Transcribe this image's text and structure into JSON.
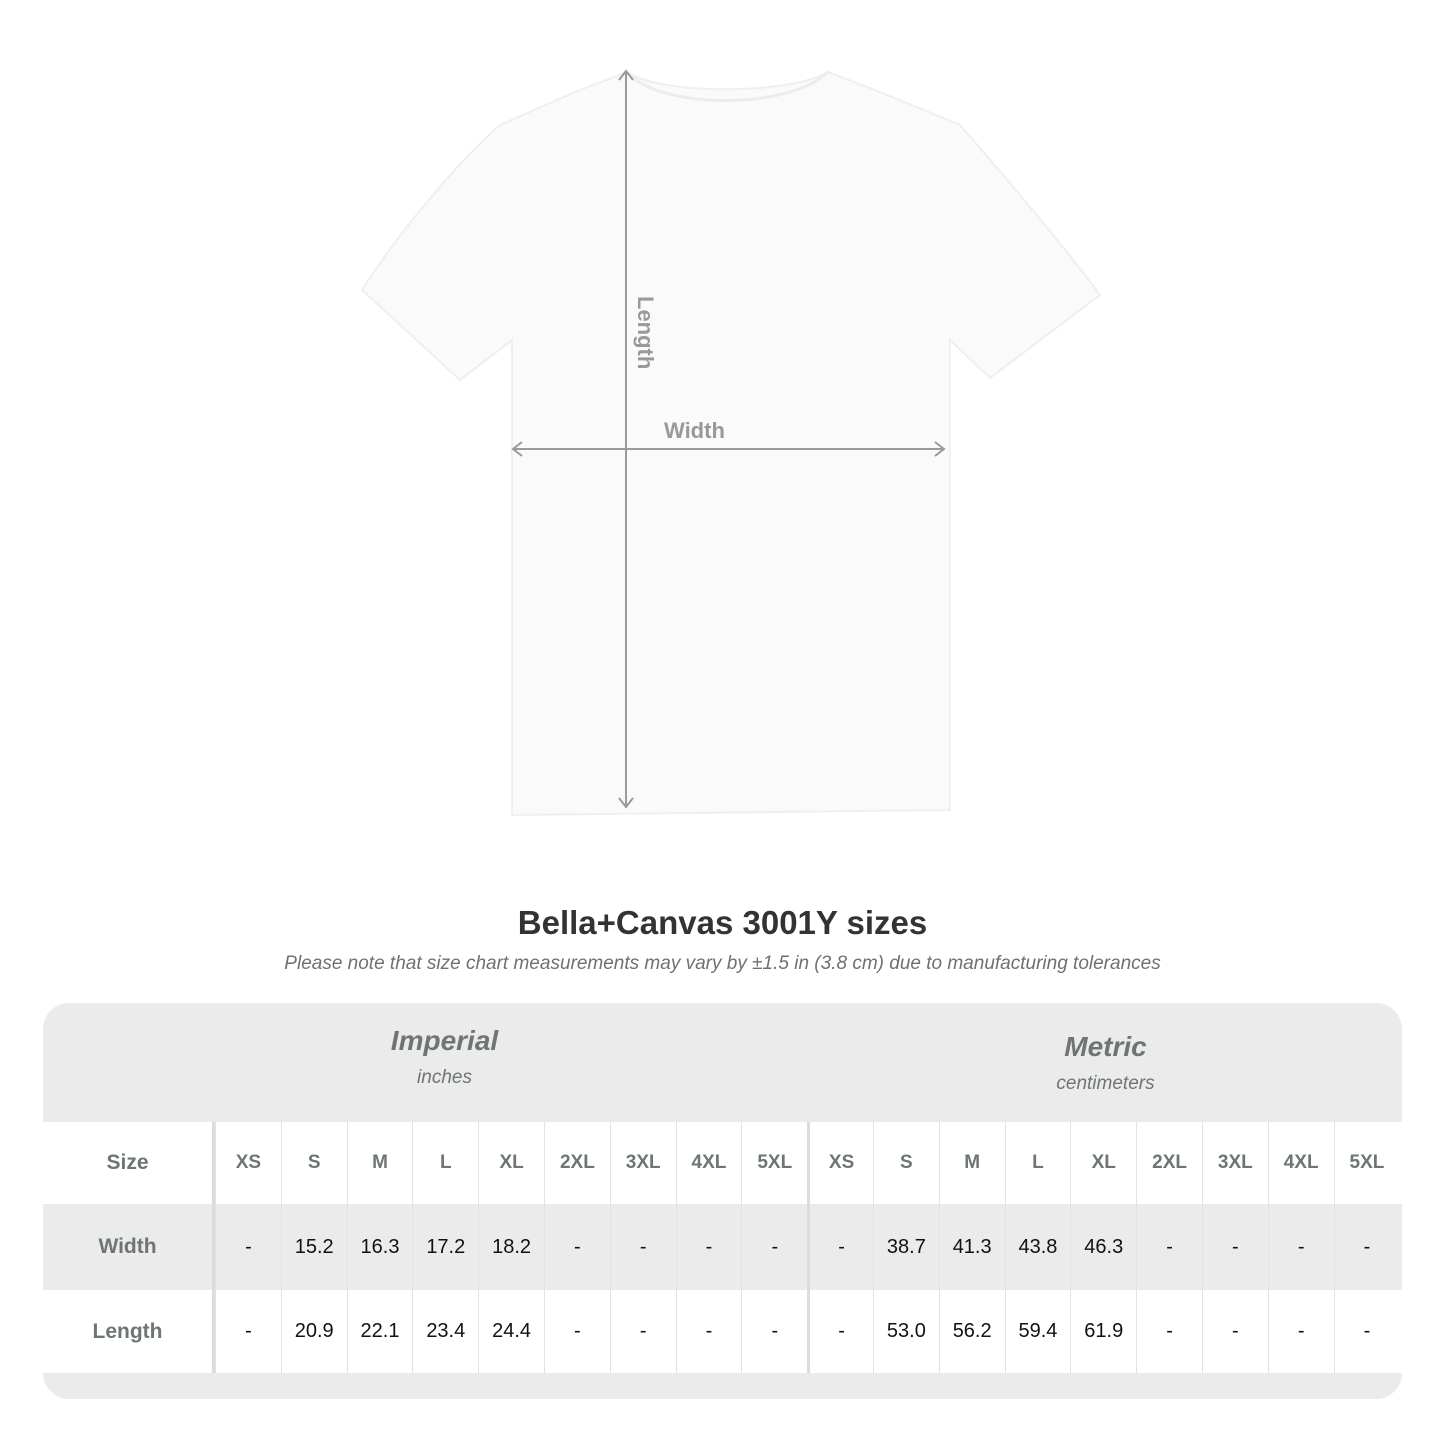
{
  "diagram": {
    "length_label": "Length",
    "width_label": "Width",
    "line_color": "#9a9a9a"
  },
  "title": "Bella+Canvas 3001Y sizes",
  "note": "Please note that size chart measurements may vary by ±1.5 in (3.8 cm) due to manufacturing tolerances",
  "table": {
    "imperial": {
      "name": "Imperial",
      "unit": "inches"
    },
    "metric": {
      "name": "Metric",
      "unit": "centimeters"
    },
    "size_label": "Size",
    "sizes": [
      "XS",
      "S",
      "M",
      "L",
      "XL",
      "2XL",
      "3XL",
      "4XL",
      "5XL"
    ],
    "rows": [
      {
        "label": "Width",
        "imperial": [
          "-",
          "15.2",
          "16.3",
          "17.2",
          "18.2",
          "-",
          "-",
          "-",
          "-"
        ],
        "metric": [
          "-",
          "38.7",
          "41.3",
          "43.8",
          "46.3",
          "-",
          "-",
          "-",
          "-"
        ]
      },
      {
        "label": "Length",
        "imperial": [
          "-",
          "20.9",
          "22.1",
          "23.4",
          "24.4",
          "-",
          "-",
          "-",
          "-"
        ],
        "metric": [
          "-",
          "53.0",
          "56.2",
          "59.4",
          "61.9",
          "-",
          "-",
          "-",
          "-"
        ]
      }
    ]
  }
}
